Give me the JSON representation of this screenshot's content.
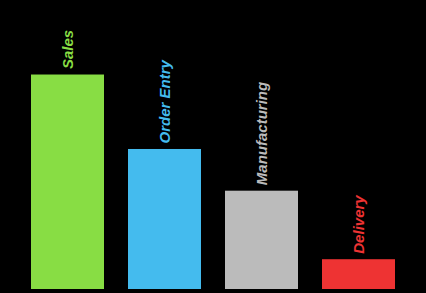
{
  "chart_data": {
    "type": "bar",
    "categories": [
      "Sales",
      "Order Entry",
      "Manufacturing",
      "Delivery"
    ],
    "values": [
      0.72,
      0.47,
      0.33,
      0.1
    ],
    "colors": [
      "#88dd44",
      "#44bbee",
      "#bbbbbb",
      "#ee3333"
    ],
    "ylim": [
      0,
      0.95
    ],
    "grid": false,
    "tick_labels": false
  }
}
